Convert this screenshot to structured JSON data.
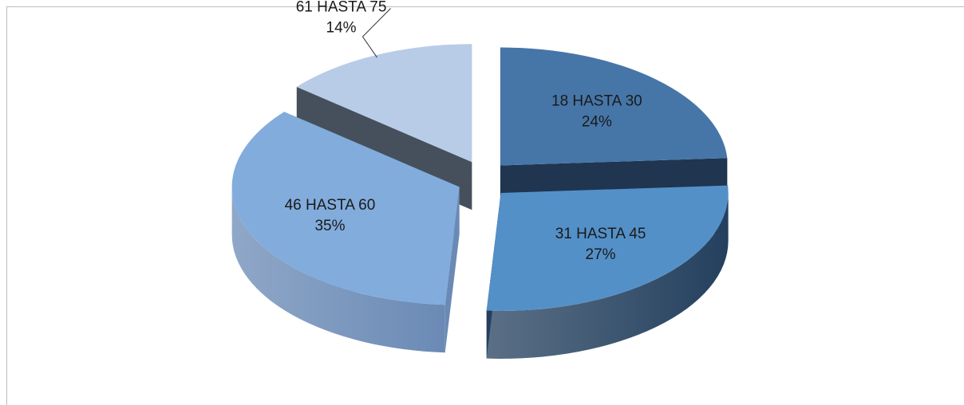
{
  "chart_data": {
    "type": "pie",
    "categories": [
      "18 HASTA 30",
      "31 HASTA 45",
      "46 HASTA 60",
      "61 HASTA 75"
    ],
    "values": [
      24,
      27,
      35,
      14
    ],
    "value_labels": [
      "24%",
      "27%",
      "35%",
      "14%"
    ],
    "colors": [
      "#4676a8",
      "#5490c8",
      "#82acdc",
      "#b8cce8"
    ],
    "side_colors": [
      "#1f3550",
      "#24405e",
      "#6a8ab5",
      "#46505c"
    ]
  }
}
